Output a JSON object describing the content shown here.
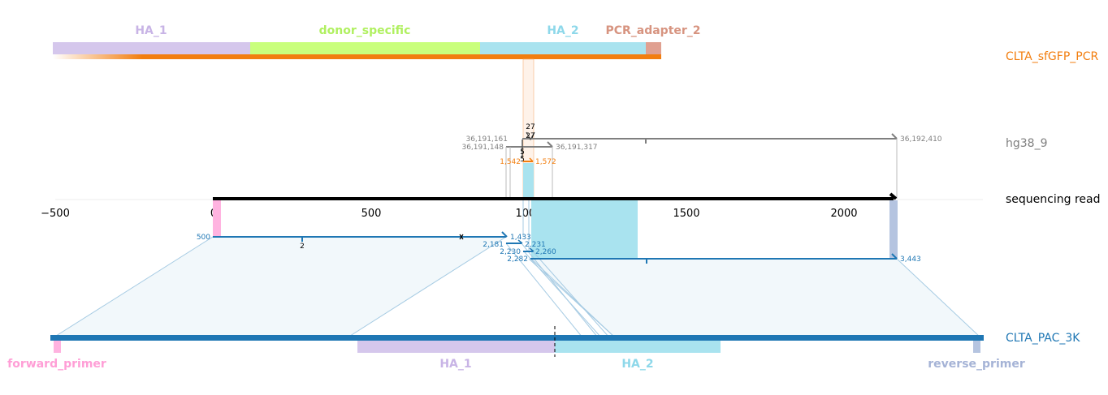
{
  "colors": {
    "top_ref": "#f27e0f",
    "genome": "#7f7f7f",
    "read": "#000000",
    "bottom_ref": "#1f77b4",
    "HA_1": "#d5c7ec",
    "HA_1_text": "#c8b4e6",
    "donor_specific": "#c9ff7c",
    "donor_specific_text": "#b0f060",
    "HA_2": "#a9e3ef",
    "HA_2_text": "#8ed8ea",
    "PCR_adapter_2": "#e0a090",
    "PCR_adapter_2_text": "#d79480",
    "forward_primer": "#ffb3e0",
    "forward_primer_text": "#ff9ed6",
    "reverse_primer": "#b5c4e0",
    "reverse_primer_text": "#a5b3d6"
  },
  "references": {
    "top": "CLTA_sfGFP_PCR",
    "genome": "hg38_9",
    "read": "sequencing read",
    "bottom": "CLTA_PAC_3K"
  },
  "top_features": [
    {
      "name": "HA_1"
    },
    {
      "name": "donor_specific"
    },
    {
      "name": "HA_2"
    },
    {
      "name": "PCR_adapter_2"
    }
  ],
  "bottom_features": [
    {
      "name": "forward_primer"
    },
    {
      "name": "HA_1"
    },
    {
      "name": "HA_2"
    },
    {
      "name": "reverse_primer"
    }
  ],
  "axis": {
    "ticks": [
      -500,
      0,
      500,
      1000,
      1500,
      2000
    ],
    "range": [
      -500,
      2400
    ]
  },
  "genome_alignments": [
    {
      "start_label": "36,191,161",
      "end_label": "36,192,410",
      "read_start": 985,
      "read_end": 2170
    },
    {
      "start_label": "36,191,148",
      "end_label": "36,191,317",
      "read_start": 975,
      "read_end": 1080
    }
  ],
  "top_alignment": {
    "start_label": "1,542",
    "end_label": "1,572",
    "read_start": 978,
    "read_end": 1010
  },
  "bottom_alignments": [
    {
      "start_label": "500",
      "end_label": "1,433",
      "read_start": 0,
      "read_end": 935
    },
    {
      "start_label": "2,181",
      "end_label": "2,231",
      "read_start": 935,
      "read_end": 985
    },
    {
      "start_label": "2,230",
      "end_label": "2,260",
      "read_start": 983,
      "read_end": 1010
    },
    {
      "start_label": "2,282",
      "end_label": "3,443",
      "read_start": 1005,
      "read_end": 2170
    }
  ],
  "annotations": {
    "insertion_27": "27",
    "insertion_5": "5",
    "insertion_2": "2"
  }
}
